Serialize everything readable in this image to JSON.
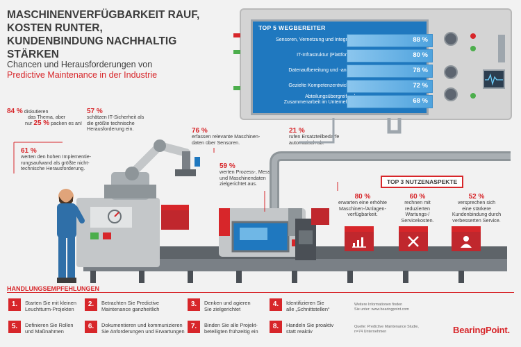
{
  "header": {
    "title_lines": [
      "MASCHINENVERFÜGBARKEIT RAUF,",
      "KOSTEN RUNTER,",
      "KUNDENBINDUNG NACHHALTIG STÄRKEN"
    ],
    "subtitle": "Chancen und Herausforderungen von",
    "subtitle_highlight": "Predictive Maintenance in der Industrie"
  },
  "top5": {
    "title": "TOP 5 WEGBEREITER",
    "items": [
      {
        "label": "Sensoren, Vernetzung und Integration",
        "value": "88 %",
        "fraction": 0.88
      },
      {
        "label": "IT-Infrastruktur (Plattformen)",
        "value": "80 %",
        "fraction": 0.8
      },
      {
        "label": "Datenaufbereitung und -analyse",
        "value": "78 %",
        "fraction": 0.78
      },
      {
        "label": "Gezielte Kompetenzentwicklung",
        "value": "72 %",
        "fraction": 0.72
      },
      {
        "label": "Abteilungsübergreifende Zusammenarbeit im Unternehmen",
        "label_lines": [
          "Abteilungsübergreifende",
          "Zusammenarbeit im Unternehmen"
        ],
        "value": "68 %",
        "fraction": 0.68
      }
    ]
  },
  "stats": {
    "s84": {
      "pct": "84 %",
      "text1": "diskutieren",
      "text2": "das Thema, aber",
      "text3": "nur",
      "pct2": "25 %",
      "text4": "packen es an!"
    },
    "s57": {
      "pct": "57 %",
      "lines": [
        "schätzen IT-Sicherheit als",
        "die größte technische",
        "Herausforderung ein."
      ]
    },
    "s61": {
      "pct": "61 %",
      "lines": [
        "werten den hohen Implementie-",
        "rungsaufwand als größte nicht-",
        "technische Herausforderung."
      ]
    },
    "s76": {
      "pct": "76 %",
      "lines": [
        "erfassen relevante Maschinen-",
        "daten über Sensoren."
      ]
    },
    "s21": {
      "pct": "21 %",
      "lines": [
        "rufen Ersatzteilbedarfe",
        "automatisch ab."
      ]
    },
    "s59": {
      "pct": "59 %",
      "lines": [
        "werten Prozess-, Mess-",
        "und Maschinendaten",
        "zielgerichtet aus."
      ]
    }
  },
  "nutzen": {
    "title": "TOP 3 NUTZENASPEKTE",
    "items": [
      {
        "pct": "80 %",
        "lines": [
          "erwarten eine erhöhte",
          "Maschinen-/Anlagen-",
          "verfügbarkeit."
        ],
        "icon": "chart-icon"
      },
      {
        "pct": "60 %",
        "lines": [
          "rechnen mit",
          "reduzierten",
          "Wartungs-/",
          "Servicekosten."
        ],
        "icon": "tools-icon"
      },
      {
        "pct": "52 %",
        "lines": [
          "versprechen sich",
          "eine stärkere",
          "Kundenbindung durch",
          "verbesserten Service."
        ],
        "icon": "person-icon"
      }
    ]
  },
  "actions": {
    "title": "HANDLUNGSEMPFEHLUNGEN",
    "items": [
      {
        "num": "1.",
        "lines": [
          "Starten Sie mit kleinen",
          "Leuchtturm-Projekten"
        ]
      },
      {
        "num": "2.",
        "lines": [
          "Betrachten Sie Predictive",
          "Maintenance ganzheitlich"
        ]
      },
      {
        "num": "3.",
        "lines": [
          "Denken und agieren",
          "Sie zielgerichtet"
        ]
      },
      {
        "num": "4.",
        "lines": [
          "Identifizieren Sie",
          "alle „Schnittstellen“"
        ]
      },
      {
        "num": "5.",
        "lines": [
          "Definieren Sie Rollen",
          "und Maßnahmen"
        ]
      },
      {
        "num": "6.",
        "lines": [
          "Dokumentieren und kommunizieren",
          "Sie Anforderungen und Erwartungen"
        ]
      },
      {
        "num": "7.",
        "lines": [
          "Binden Sie alle Projekt-",
          "beteiligten frühzeitig ein"
        ]
      },
      {
        "num": "8.",
        "lines": [
          "Handeln Sie proaktiv",
          "statt reaktiv"
        ]
      }
    ]
  },
  "footer": {
    "info_lines": [
      "Weitere Informationen finden",
      "Sie unter: www.bearingpoint.com"
    ],
    "source_lines": [
      "Quelle: Predictive Maintenance Studie,",
      "n=74 Unternehmen"
    ],
    "logo": "BearingPoint."
  },
  "colors": {
    "accent": "#d7262a",
    "screen": "#1f78bf",
    "gauge": "#4fa3de",
    "machine": "#bfbfbf",
    "dark": "#4a4f55"
  }
}
